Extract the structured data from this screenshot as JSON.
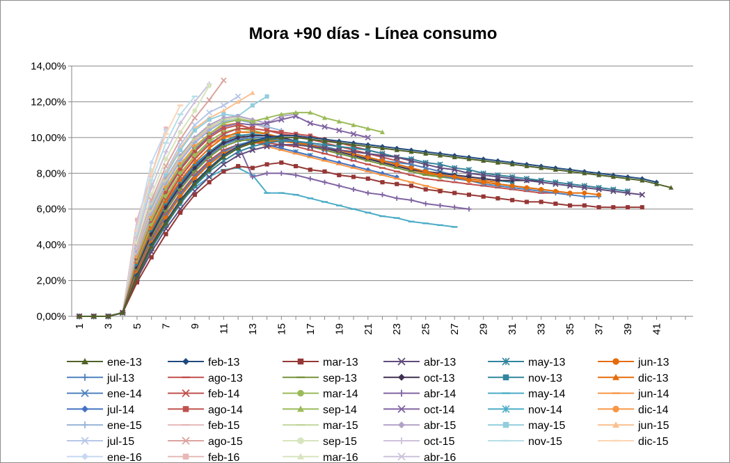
{
  "chart_data": {
    "type": "line",
    "title": "Mora +90 días - Línea consumo",
    "xlabel": "",
    "ylabel": "",
    "x_ticks": [
      "1",
      "3",
      "5",
      "7",
      "9",
      "11",
      "13",
      "15",
      "17",
      "19",
      "21",
      "23",
      "25",
      "27",
      "29",
      "31",
      "33",
      "35",
      "37",
      "39",
      "41"
    ],
    "x_range": [
      1,
      43
    ],
    "y_ticks": [
      "0,00%",
      "2,00%",
      "4,00%",
      "6,00%",
      "8,00%",
      "10,00%",
      "12,00%",
      "14,00%"
    ],
    "ylim": [
      0,
      14
    ],
    "grid": "horizontal",
    "legend_position": "bottom",
    "series": [
      {
        "name": "ene-13",
        "color": "#4f6228",
        "marker": "triangle",
        "values": [
          0,
          0,
          0,
          0.2,
          2.2,
          3.9,
          5.2,
          6.4,
          7.4,
          8.2,
          8.9,
          9.4,
          9.7,
          9.9,
          10,
          10,
          9.9,
          9.8,
          9.7,
          9.6,
          9.5,
          9.4,
          9.3,
          9.2,
          9.1,
          9,
          8.9,
          8.8,
          8.7,
          8.6,
          8.5,
          8.4,
          8.3,
          8.2,
          8.1,
          8,
          7.9,
          7.8,
          7.7,
          7.6,
          7.4,
          7.2
        ]
      },
      {
        "name": "feb-13",
        "color": "#1f497d",
        "marker": "diamond",
        "values": [
          0,
          0,
          0,
          0.2,
          2.3,
          4,
          5.3,
          6.5,
          7.5,
          8.3,
          9,
          9.5,
          9.8,
          10,
          10.1,
          10.1,
          10,
          9.9,
          9.8,
          9.7,
          9.6,
          9.5,
          9.4,
          9.3,
          9.2,
          9.1,
          9,
          8.9,
          8.8,
          8.7,
          8.6,
          8.5,
          8.4,
          8.3,
          8.2,
          8.1,
          8,
          7.9,
          7.8,
          7.7,
          7.5
        ]
      },
      {
        "name": "mar-13",
        "color": "#953735",
        "marker": "square",
        "values": [
          0,
          0,
          0,
          0.2,
          1.9,
          3.3,
          4.6,
          5.8,
          6.8,
          7.5,
          8.1,
          8.4,
          8.3,
          8.5,
          8.6,
          8.4,
          8.2,
          8.1,
          7.9,
          7.8,
          7.7,
          7.5,
          7.4,
          7.3,
          7.1,
          7,
          6.9,
          6.8,
          6.7,
          6.6,
          6.5,
          6.4,
          6.4,
          6.3,
          6.2,
          6.2,
          6.1,
          6.1,
          6.1,
          6.1
        ]
      },
      {
        "name": "abr-13",
        "color": "#604a7b",
        "marker": "x",
        "values": [
          0,
          0,
          0,
          0.2,
          2.1,
          3.6,
          4.9,
          6,
          7,
          7.8,
          8.5,
          9,
          9.3,
          9.5,
          9.6,
          9.6,
          9.5,
          9.4,
          9.3,
          9.2,
          9.1,
          9,
          8.9,
          8.7,
          8.5,
          8.3,
          8.2,
          8,
          7.9,
          7.8,
          7.7,
          7.6,
          7.5,
          7.4,
          7.3,
          7.2,
          7.1,
          7,
          6.9,
          6.8
        ]
      },
      {
        "name": "may-13",
        "color": "#31859c",
        "marker": "asterisk",
        "values": [
          0,
          0,
          0,
          0.2,
          2.2,
          3.8,
          5.1,
          6.3,
          7.3,
          8.1,
          8.7,
          9.2,
          9.5,
          9.7,
          9.8,
          9.8,
          9.7,
          9.6,
          9.5,
          9.4,
          9.3,
          9.1,
          8.9,
          8.8,
          8.6,
          8.5,
          8.3,
          8.2,
          8,
          7.9,
          7.8,
          7.7,
          7.6,
          7.5,
          7.4,
          7.3,
          7.2,
          7.1,
          7
        ]
      },
      {
        "name": "jun-13",
        "color": "#e46c0a",
        "marker": "circle",
        "values": [
          0,
          0,
          0,
          0.2,
          2.4,
          4.1,
          5.5,
          6.7,
          7.7,
          8.5,
          9.1,
          9.5,
          9.7,
          9.8,
          9.8,
          9.7,
          9.6,
          9.4,
          9.3,
          9.1,
          8.9,
          8.7,
          8.5,
          8.3,
          8.1,
          7.9,
          7.8,
          7.6,
          7.5,
          7.4,
          7.3,
          7.2,
          7.1,
          7,
          6.9,
          6.9,
          6.8
        ]
      },
      {
        "name": "jul-13",
        "color": "#4f81bd",
        "marker": "plus",
        "values": [
          0,
          0,
          0,
          0.2,
          2.4,
          4.2,
          5.6,
          6.8,
          7.8,
          8.6,
          9.2,
          9.6,
          9.8,
          9.9,
          9.9,
          9.8,
          9.6,
          9.5,
          9.3,
          9.1,
          8.9,
          8.7,
          8.5,
          8.3,
          8.1,
          7.9,
          7.7,
          7.6,
          7.4,
          7.3,
          7.2,
          7.1,
          7,
          6.9,
          6.8,
          6.7,
          6.7
        ]
      },
      {
        "name": "ago-13",
        "color": "#c0504d",
        "marker": "dash",
        "values": [
          0,
          0,
          0,
          0.2,
          2.5,
          4.3,
          5.7,
          6.9,
          7.9,
          8.7,
          9.3,
          9.6,
          9.7,
          9.7,
          9.6,
          9.5,
          9.3,
          9.1,
          8.9,
          8.7,
          8.5,
          8.3,
          8.1,
          7.9,
          7.7,
          7.6,
          7.5,
          7.4,
          7.3,
          7.2,
          7.1,
          7,
          6.9,
          6.9,
          6.8
        ]
      },
      {
        "name": "sep-13",
        "color": "#77933c",
        "marker": "dash",
        "values": [
          0,
          0,
          0,
          0.2,
          2.6,
          4.4,
          5.9,
          7.1,
          8.1,
          8.9,
          9.5,
          9.8,
          9.9,
          9.9,
          9.8,
          9.7,
          9.5,
          9.3,
          9.1,
          8.9,
          8.7,
          8.5,
          8.3,
          8.1,
          7.9,
          7.8,
          7.7,
          7.6,
          7.5,
          7.4,
          7.3,
          7.2,
          7.1,
          7
        ]
      },
      {
        "name": "oct-13",
        "color": "#403152",
        "marker": "diamond",
        "values": [
          0,
          0,
          0,
          0.2,
          2.7,
          4.6,
          6.1,
          7.3,
          8.3,
          9.1,
          9.7,
          10,
          10.1,
          10.1,
          10,
          9.8,
          9.6,
          9.4,
          9.2,
          9,
          8.8,
          8.6,
          8.4,
          8.2,
          8.1,
          8,
          7.9,
          7.8,
          7.7,
          7.6,
          7.6,
          7.6,
          7.6
        ]
      },
      {
        "name": "nov-13",
        "color": "#31859c",
        "marker": "square",
        "values": [
          0,
          0,
          0,
          0.2,
          2.8,
          4.7,
          6.2,
          7.4,
          8.4,
          9.2,
          9.8,
          10.1,
          10.2,
          10.1,
          10,
          9.8,
          9.6,
          9.4,
          9.2,
          9,
          8.8,
          8.6,
          8.4,
          8.2,
          8.1,
          8,
          7.9,
          7.8,
          7.7,
          7.6,
          7.5
        ]
      },
      {
        "name": "dic-13",
        "color": "#e46c0a",
        "marker": "triangle",
        "values": [
          0,
          0,
          0,
          0.2,
          2.9,
          4.9,
          6.4,
          7.6,
          8.6,
          9.4,
          10,
          10.3,
          10.3,
          10.2,
          10,
          9.8,
          9.6,
          9.4,
          9.2,
          9,
          8.8,
          8.6,
          8.4,
          8.2,
          8,
          7.9,
          7.8,
          7.7,
          7.6,
          7.5
        ]
      },
      {
        "name": "ene-14",
        "color": "#4f81bd",
        "marker": "x",
        "values": [
          0,
          0,
          0,
          0.2,
          2.6,
          4.5,
          6,
          7.2,
          8.2,
          9,
          9.6,
          9.9,
          10,
          10,
          9.9,
          9.7,
          9.5,
          9.3,
          9.1,
          8.9,
          8.8,
          8.7,
          8.6,
          8.5,
          8.3,
          8.1,
          7.9,
          7.8
        ]
      },
      {
        "name": "feb-14",
        "color": "#c0504d",
        "marker": "x",
        "values": [
          0,
          0,
          0,
          0.2,
          2.9,
          4.9,
          6.5,
          7.8,
          8.8,
          9.6,
          10.2,
          10.5,
          10.5,
          10.4,
          10.2,
          10.1,
          9.9,
          9.7,
          9.5,
          9.3,
          9.1,
          8.9,
          8.7,
          8.5,
          8.3,
          8.1,
          7.9
        ]
      },
      {
        "name": "mar-14",
        "color": "#9bbb59",
        "marker": "circle",
        "values": [
          0,
          0,
          0,
          0.2,
          3,
          5.1,
          6.7,
          8,
          9,
          9.8,
          10.3,
          10.5,
          10.4,
          10.2,
          10,
          9.8,
          9.6,
          9.4,
          9.2,
          9,
          8.8,
          8.6,
          8.4,
          8.2,
          8,
          7.8
        ]
      },
      {
        "name": "abr-14",
        "color": "#8064a2",
        "marker": "plus",
        "values": [
          0,
          0,
          0,
          0.2,
          2.5,
          4.3,
          5.7,
          6.9,
          7.9,
          8.7,
          9.3,
          9.6,
          7.8,
          8,
          8,
          7.9,
          7.7,
          7.5,
          7.3,
          7.1,
          6.9,
          6.8,
          6.6,
          6.5,
          6.3,
          6.2,
          6.1,
          6
        ]
      },
      {
        "name": "may-14",
        "color": "#4bacc6",
        "marker": "dash",
        "values": [
          0,
          0,
          0,
          0.2,
          2.3,
          4,
          5.3,
          6.4,
          7.2,
          7.8,
          8.2,
          8.3,
          7.9,
          6.9,
          6.9,
          6.8,
          6.6,
          6.4,
          6.2,
          6,
          5.8,
          5.6,
          5.5,
          5.3,
          5.2,
          5.1,
          5
        ]
      },
      {
        "name": "jun-14",
        "color": "#f79646",
        "marker": "dash",
        "values": [
          0,
          0,
          0,
          0.2,
          3,
          5,
          6.6,
          7.9,
          8.9,
          9.6,
          10,
          10.1,
          9.8,
          9.5,
          9.3,
          9.1,
          8.9,
          8.7,
          8.5,
          8.3,
          8.1,
          7.9,
          7.7,
          7.5,
          7.3,
          7.1
        ]
      },
      {
        "name": "jul-14",
        "color": "#4472c4",
        "marker": "diamond",
        "values": [
          0,
          0,
          0,
          0.2,
          2.8,
          4.8,
          6.3,
          7.5,
          8.5,
          9.2,
          9.7,
          9.9,
          9.8,
          9.6,
          9.4,
          9.2,
          9,
          8.8,
          8.6,
          8.4,
          8.2,
          8,
          7.8
        ]
      },
      {
        "name": "ago-14",
        "color": "#c0504d",
        "marker": "square",
        "values": [
          0,
          0,
          0,
          0.2,
          3.1,
          5.2,
          6.9,
          8.2,
          9.2,
          10,
          10.5,
          10.7,
          10.5,
          10.4,
          10.3,
          10.2,
          10.1,
          9.9,
          9.7,
          9.5,
          9.3,
          9.1,
          8.9,
          8.7
        ]
      },
      {
        "name": "sep-14",
        "color": "#9bbb59",
        "marker": "triangle",
        "values": [
          0,
          0,
          0,
          0.2,
          3.2,
          5.4,
          7.1,
          8.4,
          9.4,
          10.2,
          10.8,
          11,
          10.9,
          11.1,
          11.3,
          11.4,
          11.4,
          11.1,
          10.9,
          10.7,
          10.5,
          10.3
        ]
      },
      {
        "name": "oct-14",
        "color": "#8064a2",
        "marker": "x",
        "values": [
          0,
          0,
          0,
          0.2,
          3.1,
          5.3,
          7,
          8.3,
          9.3,
          10.1,
          10.6,
          10.8,
          10.7,
          10.8,
          11,
          11.2,
          10.8,
          10.6,
          10.4,
          10.2,
          10
        ]
      },
      {
        "name": "nov-14",
        "color": "#4bacc6",
        "marker": "asterisk",
        "values": [
          0,
          0,
          0,
          0.2,
          3,
          5.1,
          6.7,
          8,
          9,
          9.7,
          10.1,
          10.2,
          9.9,
          9.6,
          9.4,
          9.2,
          9
        ]
      },
      {
        "name": "dic-14",
        "color": "#f79646",
        "marker": "circle",
        "values": [
          0,
          0,
          0,
          0.2,
          3.3,
          5.5,
          7.2,
          8.5,
          9.5,
          10.2,
          10.7,
          10.8,
          10.4,
          10.2,
          10
        ]
      },
      {
        "name": "ene-15",
        "color": "#95b3d7",
        "marker": "plus",
        "values": [
          0,
          0,
          0,
          0.2,
          3.4,
          5.7,
          7.4,
          8.7,
          9.7,
          10.4,
          10.9,
          11,
          10.8,
          10.6,
          10.4
        ]
      },
      {
        "name": "feb-15",
        "color": "#e6b9b8",
        "marker": "dash",
        "values": [
          0,
          0,
          0,
          0.2,
          3.5,
          5.8,
          7.5,
          8.8,
          9.8,
          10.5,
          10.9,
          11,
          10.8,
          10.5
        ]
      },
      {
        "name": "mar-15",
        "color": "#c3d69b",
        "marker": "dash",
        "values": [
          0,
          0,
          0,
          0.2,
          3.5,
          5.9,
          7.6,
          8.9,
          9.9,
          10.6,
          11,
          11.1,
          10.9,
          10.6
        ]
      },
      {
        "name": "abr-15",
        "color": "#b3a2c7",
        "marker": "diamond",
        "values": [
          0,
          0,
          0,
          0.2,
          3.6,
          6,
          7.7,
          9,
          10,
          10.7,
          11.1,
          11.2,
          11,
          10.8,
          11.2,
          11.3
        ]
      },
      {
        "name": "may-15",
        "color": "#93cddd",
        "marker": "square",
        "values": [
          0,
          0,
          0,
          0.2,
          3.6,
          6.1,
          7.9,
          9.3,
          10.4,
          11,
          11.3,
          11.2,
          11.8,
          12.3
        ]
      },
      {
        "name": "jun-15",
        "color": "#fac090",
        "marker": "triangle",
        "values": [
          0,
          0,
          0,
          0.2,
          3.7,
          6.2,
          8,
          9.4,
          10.5,
          11.1,
          11.5,
          12,
          12.5
        ]
      },
      {
        "name": "jul-15",
        "color": "#b7c6e8",
        "marker": "x",
        "values": [
          0,
          0,
          0,
          0.2,
          3.8,
          6.3,
          8.1,
          9.6,
          10.7,
          11.4,
          11.8,
          12.3
        ]
      },
      {
        "name": "ago-15",
        "color": "#dba39f",
        "marker": "x",
        "values": [
          0,
          0,
          0,
          0.2,
          3.9,
          6.5,
          8.4,
          9.9,
          11.1,
          12.1,
          13.2
        ]
      },
      {
        "name": "sep-15",
        "color": "#d7e4bd",
        "marker": "circle",
        "values": [
          0,
          0,
          0,
          0.2,
          4.1,
          6.8,
          8.8,
          10.3,
          11.5,
          12.9
        ]
      },
      {
        "name": "oct-15",
        "color": "#ccc1da",
        "marker": "plus",
        "values": [
          0,
          0,
          0,
          0.2,
          4.4,
          7.2,
          9.2,
          10.8,
          12,
          13
        ]
      },
      {
        "name": "nov-15",
        "color": "#b7dee8",
        "marker": "dash",
        "values": [
          0,
          0,
          0,
          0.2,
          4.6,
          7.6,
          9.7,
          11.3,
          12.3
        ]
      },
      {
        "name": "dic-15",
        "color": "#fcd5b5",
        "marker": "dash",
        "values": [
          0,
          0,
          0,
          0.2,
          4.8,
          7.9,
          10.2,
          11.8
        ]
      },
      {
        "name": "ene-16",
        "color": "#c6d9f1",
        "marker": "diamond",
        "values": [
          0,
          0,
          0,
          0.2,
          5,
          8.6,
          10.4
        ]
      },
      {
        "name": "feb-16",
        "color": "#e6b9b8",
        "marker": "square",
        "values": [
          0,
          0,
          0,
          0.2,
          5.4,
          7.9,
          10.5
        ]
      },
      {
        "name": "mar-16",
        "color": "#d7e4bd",
        "marker": "triangle",
        "values": [
          0,
          0,
          0,
          0.2,
          4.2,
          8.2
        ]
      },
      {
        "name": "abr-16",
        "color": "#ccc1da",
        "marker": "x",
        "values": [
          0,
          0,
          0,
          0.2,
          4.3,
          7.4
        ]
      }
    ]
  }
}
